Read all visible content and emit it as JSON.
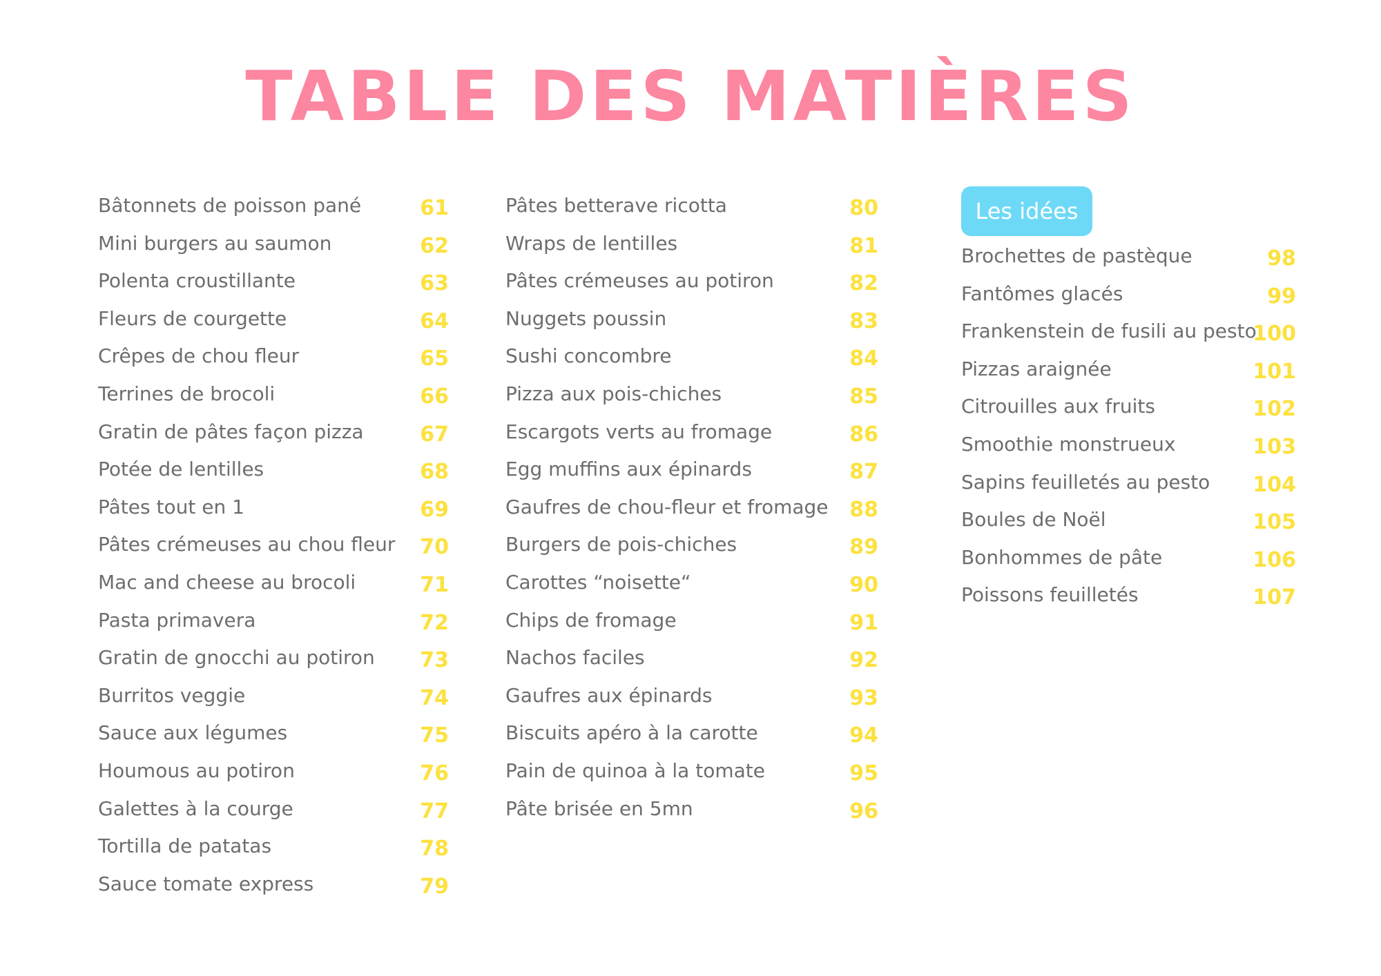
{
  "title": "TABLE DES MATIÈRES",
  "colors": {
    "title": "#fd86a0",
    "text": "#6d6d6d",
    "page_number": "#fde13e",
    "badge_background": "#6dd9f6",
    "badge_text": "#ffffff"
  },
  "columns": [
    {
      "items": [
        {
          "label": "Bâtonnets de poisson pané",
          "page": "61"
        },
        {
          "label": "Mini burgers au saumon",
          "page": "62"
        },
        {
          "label": "Polenta croustillante",
          "page": "63"
        },
        {
          "label": "Fleurs de courgette",
          "page": "64"
        },
        {
          "label": "Crêpes de chou fleur",
          "page": "65"
        },
        {
          "label": "Terrines de brocoli",
          "page": "66"
        },
        {
          "label": "Gratin de pâtes façon pizza",
          "page": "67"
        },
        {
          "label": "Potée de lentilles",
          "page": "68"
        },
        {
          "label": "Pâtes tout en 1",
          "page": "69"
        },
        {
          "label": "Pâtes crémeuses au chou fleur",
          "page": "70"
        },
        {
          "label": "Mac and cheese au brocoli",
          "page": "71"
        },
        {
          "label": "Pasta primavera",
          "page": "72"
        },
        {
          "label": "Gratin de gnocchi au potiron",
          "page": "73"
        },
        {
          "label": "Burritos veggie",
          "page": "74"
        },
        {
          "label": "Sauce aux légumes",
          "page": "75"
        },
        {
          "label": "Houmous au potiron",
          "page": "76"
        },
        {
          "label": "Galettes à la courge",
          "page": "77"
        },
        {
          "label": "Tortilla de patatas",
          "page": "78"
        },
        {
          "label": "Sauce tomate express",
          "page": "79"
        }
      ]
    },
    {
      "items": [
        {
          "label": "Pâtes betterave ricotta",
          "page": "80"
        },
        {
          "label": "Wraps de lentilles",
          "page": "81"
        },
        {
          "label": "Pâtes crémeuses au potiron",
          "page": "82"
        },
        {
          "label": "Nuggets poussin",
          "page": "83"
        },
        {
          "label": "Sushi concombre",
          "page": "84"
        },
        {
          "label": "Pizza aux pois-chiches",
          "page": "85"
        },
        {
          "label": "Escargots verts au fromage",
          "page": "86"
        },
        {
          "label": "Egg muffins aux épinards",
          "page": "87"
        },
        {
          "label": "Gaufres de chou-fleur et fromage",
          "page": "88"
        },
        {
          "label": "Burgers de pois-chiches",
          "page": "89"
        },
        {
          "label": "Carottes “noisette“",
          "page": "90"
        },
        {
          "label": "Chips de fromage",
          "page": "91"
        },
        {
          "label": "Nachos faciles",
          "page": "92"
        },
        {
          "label": "Gaufres aux épinards",
          "page": "93"
        },
        {
          "label": "Biscuits apéro à la carotte",
          "page": "94"
        },
        {
          "label": "Pain de quinoa à la tomate",
          "page": "95"
        },
        {
          "label": "Pâte brisée en 5mn",
          "page": "96"
        }
      ]
    },
    {
      "section_label": "Les idées",
      "items": [
        {
          "label": "Brochettes de pastèque",
          "page": "98"
        },
        {
          "label": "Fantômes glacés",
          "page": "99"
        },
        {
          "label": "Frankenstein de fusili au pesto",
          "page": "100"
        },
        {
          "label": "Pizzas araignée",
          "page": "101"
        },
        {
          "label": "Citrouilles aux fruits",
          "page": "102"
        },
        {
          "label": "Smoothie monstrueux",
          "page": "103"
        },
        {
          "label": "Sapins feuilletés au pesto",
          "page": "104"
        },
        {
          "label": "Boules de Noël",
          "page": "105"
        },
        {
          "label": "Bonhommes de pâte",
          "page": "106"
        },
        {
          "label": "Poissons feuilletés",
          "page": "107"
        }
      ]
    }
  ]
}
